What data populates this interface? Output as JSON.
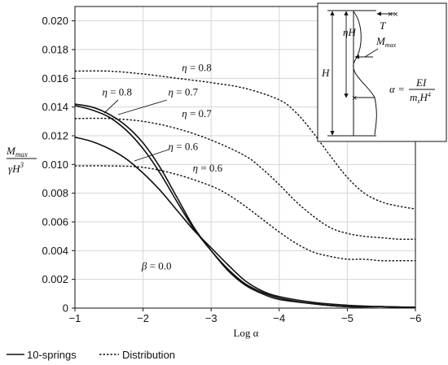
{
  "chart_data": {
    "type": "line",
    "xlabel": "Log α",
    "xlim": [
      -1,
      -6
    ],
    "ylim": [
      0,
      0.021
    ],
    "xticks": [
      "−1",
      "−2",
      "−3",
      "−4",
      "−5",
      "−6"
    ],
    "xtick_values": [
      -1,
      -2,
      -3,
      -4,
      -5,
      -6
    ],
    "yticks": [
      "0",
      "0.002",
      "0.004",
      "0.006",
      "0.008",
      "0.010",
      "0.012",
      "0.014",
      "0.016",
      "0.018",
      "0.020"
    ],
    "ytick_values": [
      0,
      0.002,
      0.004,
      0.006,
      0.008,
      0.01,
      0.012,
      0.014,
      0.016,
      0.018,
      0.02
    ],
    "ylabel_num": "M",
    "ylabel_num_sub": "max",
    "ylabel_den": "γH",
    "ylabel_den_sup": "3",
    "legend": {
      "placement": "bottom-left",
      "solid": "10-springs",
      "dashed": "Distribution"
    },
    "series": [
      {
        "name": "η = 0.8",
        "style": "solid",
        "x": [
          -1,
          -1.25,
          -1.5,
          -1.75,
          -2,
          -2.25,
          -2.5,
          -2.75,
          -3,
          -3.25,
          -3.5,
          -3.75,
          -4,
          -4.5,
          -5,
          -5.5,
          -6
        ],
        "y": [
          0.0142,
          0.014,
          0.0135,
          0.0127,
          0.0115,
          0.0098,
          0.0077,
          0.0056,
          0.004,
          0.0026,
          0.0016,
          0.001,
          0.0006,
          0.0003,
          0.0001,
          0.0001,
          5e-05
        ]
      },
      {
        "name": "η = 0.7",
        "style": "solid",
        "x": [
          -1,
          -1.25,
          -1.5,
          -1.75,
          -2,
          -2.25,
          -2.5,
          -2.75,
          -3,
          -3.25,
          -3.5,
          -3.75,
          -4,
          -4.5,
          -5,
          -5.5,
          -6
        ],
        "y": [
          0.0141,
          0.0138,
          0.0133,
          0.0124,
          0.0111,
          0.0094,
          0.0074,
          0.0055,
          0.004,
          0.0027,
          0.0017,
          0.0011,
          0.0007,
          0.0003,
          0.0001,
          0.0001,
          5e-05
        ]
      },
      {
        "name": "η = 0.6",
        "style": "solid",
        "x": [
          -1,
          -1.25,
          -1.5,
          -1.75,
          -2,
          -2.25,
          -2.5,
          -2.75,
          -3,
          -3.25,
          -3.5,
          -3.75,
          -4,
          -4.5,
          -5,
          -5.5,
          -6
        ],
        "y": [
          0.0119,
          0.0116,
          0.0111,
          0.0104,
          0.0094,
          0.0082,
          0.0068,
          0.0054,
          0.0042,
          0.003,
          0.0019,
          0.0012,
          0.0008,
          0.0004,
          0.0002,
          0.0001,
          5e-05
        ]
      },
      {
        "name": "η = 0.8",
        "style": "dashed",
        "x": [
          -1,
          -1.5,
          -2,
          -2.5,
          -3,
          -3.5,
          -4,
          -4.25,
          -4.5,
          -4.75,
          -5,
          -5.25,
          -5.5,
          -5.75,
          -6
        ],
        "y": [
          0.0165,
          0.0165,
          0.0163,
          0.016,
          0.0157,
          0.0153,
          0.0145,
          0.0136,
          0.0122,
          0.0106,
          0.0091,
          0.008,
          0.0074,
          0.0071,
          0.0069
        ]
      },
      {
        "name": "η = 0.7",
        "style": "dashed",
        "x": [
          -1,
          -1.5,
          -2,
          -2.5,
          -3,
          -3.5,
          -3.75,
          -4,
          -4.25,
          -4.5,
          -4.75,
          -5,
          -5.25,
          -5.5,
          -5.75,
          -6
        ],
        "y": [
          0.0132,
          0.0132,
          0.013,
          0.0125,
          0.0117,
          0.0106,
          0.0097,
          0.0086,
          0.0074,
          0.0064,
          0.0056,
          0.0052,
          0.005,
          0.0049,
          0.0048,
          0.0048
        ]
      },
      {
        "name": "η = 0.6",
        "style": "dashed",
        "x": [
          -1,
          -1.5,
          -2,
          -2.5,
          -3,
          -3.25,
          -3.5,
          -3.75,
          -4,
          -4.25,
          -4.5,
          -4.75,
          -5,
          -5.25,
          -5.5,
          -5.75,
          -6
        ],
        "y": [
          0.0099,
          0.0099,
          0.0098,
          0.0093,
          0.0085,
          0.0079,
          0.0071,
          0.0062,
          0.0053,
          0.0045,
          0.0039,
          0.0036,
          0.0034,
          0.0034,
          0.0033,
          0.0033,
          0.0033
        ]
      }
    ],
    "annotations": [
      {
        "text": "η = 0.8",
        "x": -2.57,
        "y": 0.0165
      },
      {
        "text": "η = 0.8",
        "x": -1.4,
        "y": 0.0148
      },
      {
        "text": "η = 0.7",
        "x": -2.37,
        "y": 0.0148
      },
      {
        "text": "η = 0.7",
        "x": -2.57,
        "y": 0.0133
      },
      {
        "text": "η = 0.6",
        "x": -2.37,
        "y": 0.011
      },
      {
        "text": "η = 0.6",
        "x": -2.73,
        "y": 0.0095
      },
      {
        "text": "β = 0.0",
        "x": -1.98,
        "y": 0.0027
      }
    ],
    "inset": {
      "labels": {
        "H": "H",
        "etaH": "ηH",
        "T": "T",
        "Mmax": "M",
        "Mmax_sub": "max"
      },
      "formula": {
        "lhs": "α =",
        "num": "EI",
        "den": "m",
        "den_sub": "s",
        "den_rest": "H",
        "den_sup": "4"
      }
    }
  }
}
